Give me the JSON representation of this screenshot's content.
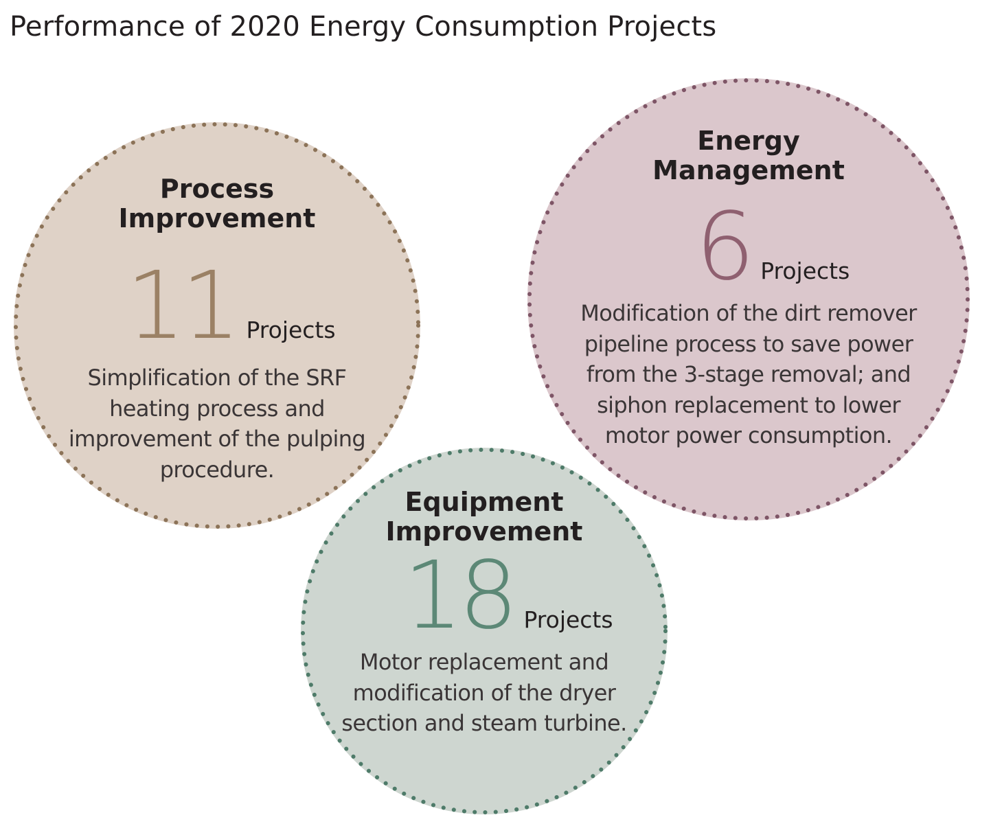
{
  "title": "Performance of 2020 Energy Consumption Projects",
  "colors": {
    "process_fill": "#dfd2c7",
    "process_dots": "#8c7358",
    "process_number": "#9b8165",
    "energy_fill": "#dbc7cc",
    "energy_dots": "#7e5566",
    "energy_number": "#8f6070",
    "equipment_fill": "#ced6d0",
    "equipment_dots": "#4e7b69",
    "equipment_number": "#5c8876"
  },
  "categories": [
    {
      "id": "process",
      "title_line1": "Process",
      "title_line2": "Improvement",
      "count": "11",
      "unit": "Projects",
      "description": "Simplification of the SRF heating process and improvement of the pulping procedure."
    },
    {
      "id": "energy",
      "title_line1": "Energy",
      "title_line2": "Management",
      "count": "6",
      "unit": "Projects",
      "description": "Modification of the dirt remover pipeline process to save power from the 3-stage removal; and siphon replacement to lower motor power consumption."
    },
    {
      "id": "equipment",
      "title_line1": "Equipment",
      "title_line2": "Improvement",
      "count": "18",
      "unit": "Projects",
      "description": "Motor replacement and modification of the dryer section and steam turbine."
    }
  ]
}
